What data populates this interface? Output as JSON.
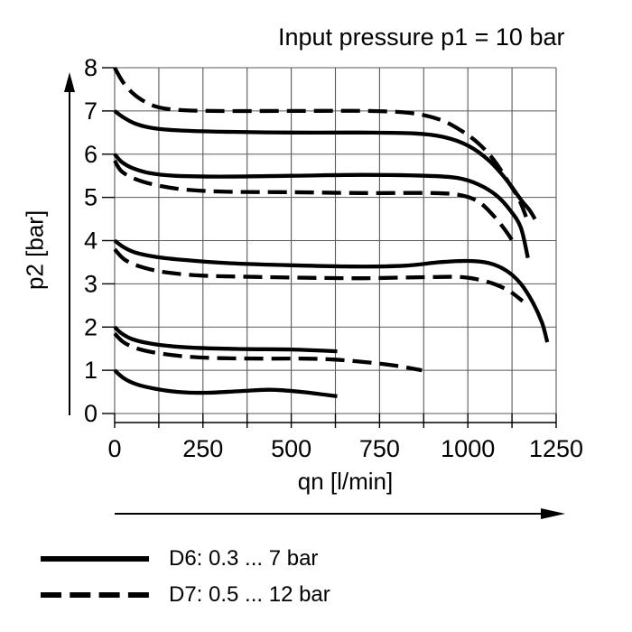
{
  "chart_data": {
    "type": "line",
    "title": "Input pressure p1 = 10 bar",
    "xlabel": "qn [l/min]",
    "ylabel": "p2 [bar]",
    "xlim": [
      0,
      1250
    ],
    "ylim": [
      0,
      8
    ],
    "x_tick_labels": [
      0,
      250,
      500,
      750,
      1000,
      1250
    ],
    "x_grid_step": 125,
    "y_tick_labels": [
      0,
      1,
      2,
      3,
      4,
      5,
      6,
      7,
      8
    ],
    "grid": true,
    "legend_position": "below-chart-left",
    "legend": [
      {
        "label": "D6: 0.3 ... 7 bar",
        "style": "solid"
      },
      {
        "label": "D7: 0.5 ... 12 bar",
        "style": "dashed"
      }
    ],
    "series": [
      {
        "name": "D6 curve 1",
        "group": "D6",
        "style": "solid",
        "points": [
          [
            0,
            7.0
          ],
          [
            25,
            6.85
          ],
          [
            60,
            6.7
          ],
          [
            110,
            6.6
          ],
          [
            180,
            6.55
          ],
          [
            300,
            6.52
          ],
          [
            500,
            6.5
          ],
          [
            700,
            6.5
          ],
          [
            850,
            6.48
          ],
          [
            930,
            6.4
          ],
          [
            1000,
            6.2
          ],
          [
            1060,
            5.85
          ],
          [
            1110,
            5.4
          ],
          [
            1150,
            4.95
          ],
          [
            1175,
            4.7
          ],
          [
            1190,
            4.5
          ]
        ]
      },
      {
        "name": "D6 curve 2",
        "group": "D6",
        "style": "solid",
        "points": [
          [
            0,
            6.0
          ],
          [
            20,
            5.82
          ],
          [
            50,
            5.68
          ],
          [
            100,
            5.56
          ],
          [
            170,
            5.5
          ],
          [
            300,
            5.48
          ],
          [
            500,
            5.5
          ],
          [
            700,
            5.52
          ],
          [
            880,
            5.5
          ],
          [
            970,
            5.45
          ],
          [
            1030,
            5.3
          ],
          [
            1080,
            5.05
          ],
          [
            1120,
            4.7
          ],
          [
            1150,
            4.3
          ],
          [
            1170,
            3.6
          ]
        ]
      },
      {
        "name": "D6 curve 3",
        "group": "D6",
        "style": "solid",
        "points": [
          [
            0,
            4.0
          ],
          [
            25,
            3.85
          ],
          [
            60,
            3.72
          ],
          [
            120,
            3.62
          ],
          [
            200,
            3.55
          ],
          [
            320,
            3.48
          ],
          [
            500,
            3.43
          ],
          [
            680,
            3.4
          ],
          [
            820,
            3.42
          ],
          [
            920,
            3.5
          ],
          [
            1000,
            3.53
          ],
          [
            1060,
            3.48
          ],
          [
            1110,
            3.3
          ],
          [
            1150,
            3.0
          ],
          [
            1185,
            2.55
          ],
          [
            1210,
            2.1
          ],
          [
            1225,
            1.65
          ]
        ]
      },
      {
        "name": "D6 curve 4",
        "group": "D6",
        "style": "solid",
        "points": [
          [
            0,
            2.0
          ],
          [
            20,
            1.85
          ],
          [
            50,
            1.72
          ],
          [
            100,
            1.62
          ],
          [
            170,
            1.55
          ],
          [
            260,
            1.51
          ],
          [
            380,
            1.49
          ],
          [
            500,
            1.48
          ],
          [
            630,
            1.44
          ]
        ]
      },
      {
        "name": "D6 curve 5",
        "group": "D6",
        "style": "solid",
        "points": [
          [
            0,
            1.0
          ],
          [
            25,
            0.82
          ],
          [
            60,
            0.68
          ],
          [
            110,
            0.58
          ],
          [
            180,
            0.5
          ],
          [
            260,
            0.48
          ],
          [
            360,
            0.52
          ],
          [
            440,
            0.55
          ],
          [
            530,
            0.5
          ],
          [
            630,
            0.4
          ]
        ]
      },
      {
        "name": "D7 curve 1",
        "group": "D7",
        "style": "dashed",
        "points": [
          [
            0,
            8.0
          ],
          [
            25,
            7.65
          ],
          [
            60,
            7.35
          ],
          [
            110,
            7.12
          ],
          [
            170,
            7.03
          ],
          [
            280,
            7.0
          ],
          [
            500,
            7.0
          ],
          [
            720,
            7.0
          ],
          [
            840,
            6.95
          ],
          [
            920,
            6.8
          ],
          [
            980,
            6.55
          ],
          [
            1030,
            6.25
          ],
          [
            1075,
            5.85
          ],
          [
            1115,
            5.35
          ],
          [
            1145,
            4.95
          ],
          [
            1165,
            4.55
          ]
        ]
      },
      {
        "name": "D7 curve 2",
        "group": "D7",
        "style": "dashed",
        "points": [
          [
            0,
            5.85
          ],
          [
            20,
            5.6
          ],
          [
            60,
            5.42
          ],
          [
            120,
            5.28
          ],
          [
            200,
            5.18
          ],
          [
            320,
            5.13
          ],
          [
            500,
            5.12
          ],
          [
            700,
            5.1
          ],
          [
            900,
            5.1
          ],
          [
            980,
            5.05
          ],
          [
            1030,
            4.9
          ],
          [
            1070,
            4.6
          ],
          [
            1105,
            4.25
          ],
          [
            1130,
            3.95
          ]
        ]
      },
      {
        "name": "D7 curve 3",
        "group": "D7",
        "style": "dashed",
        "points": [
          [
            0,
            3.8
          ],
          [
            30,
            3.55
          ],
          [
            80,
            3.38
          ],
          [
            150,
            3.26
          ],
          [
            250,
            3.19
          ],
          [
            400,
            3.16
          ],
          [
            550,
            3.14
          ],
          [
            700,
            3.13
          ],
          [
            850,
            3.15
          ],
          [
            970,
            3.16
          ],
          [
            1030,
            3.1
          ],
          [
            1080,
            2.98
          ],
          [
            1120,
            2.82
          ],
          [
            1155,
            2.6
          ]
        ]
      },
      {
        "name": "D7 curve 4",
        "group": "D7",
        "style": "dashed",
        "points": [
          [
            0,
            1.85
          ],
          [
            25,
            1.65
          ],
          [
            65,
            1.5
          ],
          [
            120,
            1.4
          ],
          [
            200,
            1.32
          ],
          [
            300,
            1.28
          ],
          [
            420,
            1.27
          ],
          [
            530,
            1.27
          ],
          [
            620,
            1.25
          ],
          [
            720,
            1.18
          ],
          [
            800,
            1.1
          ],
          [
            870,
            1.0
          ]
        ]
      }
    ]
  },
  "colors": {
    "curve": "#000000",
    "grid": "#5a5a5a",
    "axis": "#000000",
    "text": "#000000",
    "background": "#ffffff"
  }
}
